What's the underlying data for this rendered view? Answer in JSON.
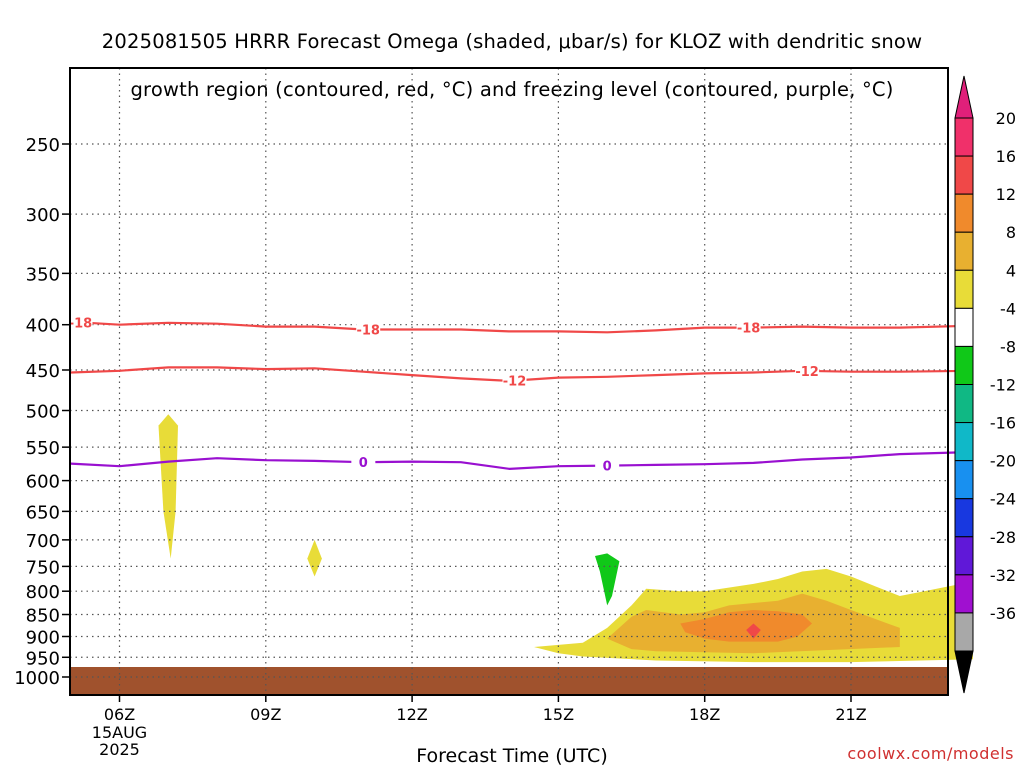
{
  "title_line1": "2025081505 HRRR Forecast Omega (shaded, μbar/s) for KLOZ with dendritic snow",
  "title_line2": "growth region (contoured, red, °C) and freezing level (contoured, purple, °C)",
  "xaxis_title": "Forecast Time (UTC)",
  "credit": "coolwx.com/models",
  "chart_data": {
    "type": "contour",
    "title": "2025081505 HRRR Forecast Omega (shaded, μbar/s) for KLOZ with dendritic snow growth region (contoured, red, °C) and freezing level (contoured, purple, °C)",
    "xlabel": "Forecast Time (UTC)",
    "ylabel": "",
    "xlim": [
      5,
      23.5
    ],
    "y_scale": "log",
    "y_inverted": true,
    "ylim": [
      1040,
      200
    ],
    "grid": true,
    "x_ticks": [
      {
        "value": 6,
        "label": "06Z"
      },
      {
        "value": 9,
        "label": "09Z"
      },
      {
        "value": 12,
        "label": "12Z"
      },
      {
        "value": 15,
        "label": "15Z"
      },
      {
        "value": 18,
        "label": "18Z"
      },
      {
        "value": 21,
        "label": "21Z"
      }
    ],
    "x_date_labels": [
      "15AUG",
      "2025"
    ],
    "y_ticks": [
      250,
      300,
      350,
      400,
      450,
      500,
      550,
      600,
      650,
      700,
      750,
      800,
      850,
      900,
      950,
      1000
    ],
    "colorbar": {
      "labels": [
        "20",
        "16",
        "12",
        "8",
        "4",
        "-4",
        "-8",
        "-12",
        "-16",
        "-20",
        "-24",
        "-28",
        "-32",
        "-36"
      ],
      "colors": [
        "#f0306a",
        "#f04848",
        "#f08a2c",
        "#e8b030",
        "#e8dc38",
        "#ffffff",
        "#10c818",
        "#10b884",
        "#10b8c8",
        "#1890f0",
        "#1838e0",
        "#6018d8",
        "#a010d0",
        "#a8a8a8",
        "#000000"
      ],
      "top_arrow_color": "#e0207a",
      "bottom_arrow_color": "#000000"
    },
    "ground_color": "#a0522d",
    "contours": [
      {
        "label": "-18",
        "color": "#f04848",
        "points": [
          [
            5,
            397
          ],
          [
            6,
            400
          ],
          [
            7,
            398
          ],
          [
            8,
            399
          ],
          [
            9,
            402
          ],
          [
            10,
            402
          ],
          [
            11,
            405
          ],
          [
            12,
            405
          ],
          [
            13,
            405
          ],
          [
            14,
            407
          ],
          [
            15,
            407
          ],
          [
            16,
            408
          ],
          [
            17,
            406
          ],
          [
            18,
            403
          ],
          [
            19,
            403
          ],
          [
            20,
            402
          ],
          [
            21,
            403
          ],
          [
            22,
            403
          ],
          [
            23.5,
            401
          ]
        ],
        "label_x": [
          5.2,
          11.1,
          18.9
        ]
      },
      {
        "label": "-12",
        "color": "#f04848",
        "points": [
          [
            5,
            453
          ],
          [
            6,
            451
          ],
          [
            7,
            447
          ],
          [
            8,
            447
          ],
          [
            9,
            449
          ],
          [
            10,
            448
          ],
          [
            11,
            452
          ],
          [
            12,
            456
          ],
          [
            13,
            460
          ],
          [
            14,
            463
          ],
          [
            15,
            459
          ],
          [
            16,
            458
          ],
          [
            17,
            456
          ],
          [
            18,
            454
          ],
          [
            19,
            453
          ],
          [
            20,
            451
          ],
          [
            21,
            452
          ],
          [
            22,
            452
          ],
          [
            23.5,
            451
          ]
        ],
        "label_x": [
          14.1,
          20.1
        ]
      },
      {
        "label": "0",
        "color": "#9910d0",
        "points": [
          [
            5,
            574
          ],
          [
            6,
            578
          ],
          [
            7,
            571
          ],
          [
            8,
            566
          ],
          [
            9,
            569
          ],
          [
            10,
            570
          ],
          [
            11,
            572
          ],
          [
            12,
            571
          ],
          [
            13,
            572
          ],
          [
            14,
            582
          ],
          [
            15,
            578
          ],
          [
            16,
            577
          ],
          [
            17,
            576
          ],
          [
            18,
            575
          ],
          [
            19,
            573
          ],
          [
            20,
            568
          ],
          [
            21,
            565
          ],
          [
            22,
            560
          ],
          [
            23.5,
            557
          ]
        ],
        "label_x": [
          11,
          16
        ]
      }
    ],
    "omega_regions": [
      {
        "level_min": 4,
        "level_max": 8,
        "color": "#e8dc38",
        "points": [
          [
            7,
            505
          ],
          [
            7.2,
            520
          ],
          [
            7.15,
            650
          ],
          [
            7.05,
            735
          ],
          [
            6.9,
            650
          ],
          [
            6.8,
            520
          ]
        ]
      },
      {
        "level_min": 4,
        "level_max": 8,
        "color": "#e8dc38",
        "points": [
          [
            10,
            700
          ],
          [
            10.15,
            735
          ],
          [
            10,
            770
          ],
          [
            9.85,
            735
          ]
        ]
      },
      {
        "level_min": -8,
        "level_max": -4,
        "color": "#10c818",
        "points": [
          [
            16,
            725
          ],
          [
            16.25,
            740
          ],
          [
            16.1,
            810
          ],
          [
            16,
            830
          ],
          [
            15.85,
            760
          ],
          [
            15.75,
            730
          ]
        ]
      },
      {
        "level_min": 4,
        "level_max": 8,
        "color": "#e8dc38",
        "points": [
          [
            14.5,
            925
          ],
          [
            15,
            920
          ],
          [
            15.5,
            915
          ],
          [
            16,
            880
          ],
          [
            16.5,
            830
          ],
          [
            16.8,
            795
          ],
          [
            17.5,
            800
          ],
          [
            18,
            800
          ],
          [
            19,
            785
          ],
          [
            19.5,
            775
          ],
          [
            20,
            760
          ],
          [
            20.5,
            755
          ],
          [
            21,
            770
          ],
          [
            21.5,
            790
          ],
          [
            22,
            810
          ],
          [
            22.5,
            800
          ],
          [
            23,
            790
          ],
          [
            23.5,
            780
          ],
          [
            23.5,
            955
          ],
          [
            21,
            962
          ],
          [
            19,
            962
          ],
          [
            17,
            958
          ],
          [
            15.5,
            948
          ],
          [
            15,
            940
          ]
        ]
      },
      {
        "level_min": 8,
        "level_max": 12,
        "color": "#e8b030",
        "points": [
          [
            16,
            905
          ],
          [
            16.5,
            855
          ],
          [
            16.8,
            840
          ],
          [
            17.5,
            850
          ],
          [
            18,
            845
          ],
          [
            18.5,
            830
          ],
          [
            19,
            825
          ],
          [
            19.5,
            820
          ],
          [
            20,
            805
          ],
          [
            20.5,
            820
          ],
          [
            21,
            840
          ],
          [
            21.5,
            860
          ],
          [
            22,
            880
          ],
          [
            22,
            925
          ],
          [
            19,
            940
          ],
          [
            17,
            935
          ],
          [
            16.5,
            930
          ]
        ]
      },
      {
        "level_min": 12,
        "level_max": 16,
        "color": "#f08a2c",
        "points": [
          [
            17.5,
            870
          ],
          [
            18,
            860
          ],
          [
            18.5,
            845
          ],
          [
            19,
            840
          ],
          [
            19.5,
            843
          ],
          [
            20,
            850
          ],
          [
            20.2,
            870
          ],
          [
            19.9,
            900
          ],
          [
            19.5,
            912
          ],
          [
            18.5,
            912
          ],
          [
            18,
            905
          ],
          [
            17.6,
            890
          ]
        ]
      },
      {
        "level_min": 16,
        "level_max": 20,
        "color": "#f04848",
        "points": [
          [
            19,
            870
          ],
          [
            19.15,
            885
          ],
          [
            19,
            905
          ],
          [
            18.85,
            885
          ]
        ]
      }
    ]
  }
}
